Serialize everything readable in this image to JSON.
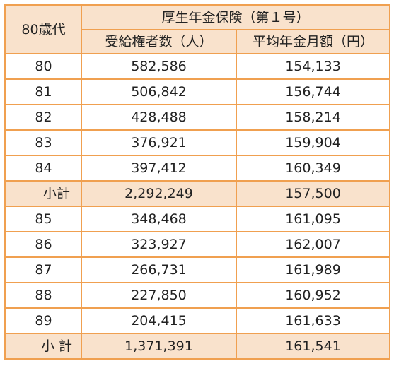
{
  "table": {
    "corner_header": "80歳代",
    "group_header": "厚生年金保険（第１号）",
    "col_count_header": "受給権者数（人）",
    "col_amount_header": "平均年金月額（円）",
    "rows": [
      {
        "age": "80",
        "count": "582,586",
        "amount": "154,133",
        "subtotal": false
      },
      {
        "age": "81",
        "count": "506,842",
        "amount": "156,744",
        "subtotal": false
      },
      {
        "age": "82",
        "count": "428,488",
        "amount": "158,214",
        "subtotal": false
      },
      {
        "age": "83",
        "count": "376,921",
        "amount": "159,904",
        "subtotal": false
      },
      {
        "age": "84",
        "count": "397,412",
        "amount": "160,349",
        "subtotal": false
      },
      {
        "age": "小計",
        "count": "2,292,249",
        "amount": "157,500",
        "subtotal": true
      },
      {
        "age": "85",
        "count": "348,468",
        "amount": "161,095",
        "subtotal": false
      },
      {
        "age": "86",
        "count": "323,927",
        "amount": "162,007",
        "subtotal": false
      },
      {
        "age": "87",
        "count": "266,731",
        "amount": "161,989",
        "subtotal": false
      },
      {
        "age": "88",
        "count": "227,850",
        "amount": "160,952",
        "subtotal": false
      },
      {
        "age": "89",
        "count": "204,415",
        "amount": "161,633",
        "subtotal": false
      },
      {
        "age": "小 計",
        "count": "1,371,391",
        "amount": "161,541",
        "subtotal": true
      }
    ]
  },
  "colors": {
    "border": "#f0a050",
    "header_fill": "#f9e2cc",
    "subtotal_fill": "#f9e2cc"
  }
}
